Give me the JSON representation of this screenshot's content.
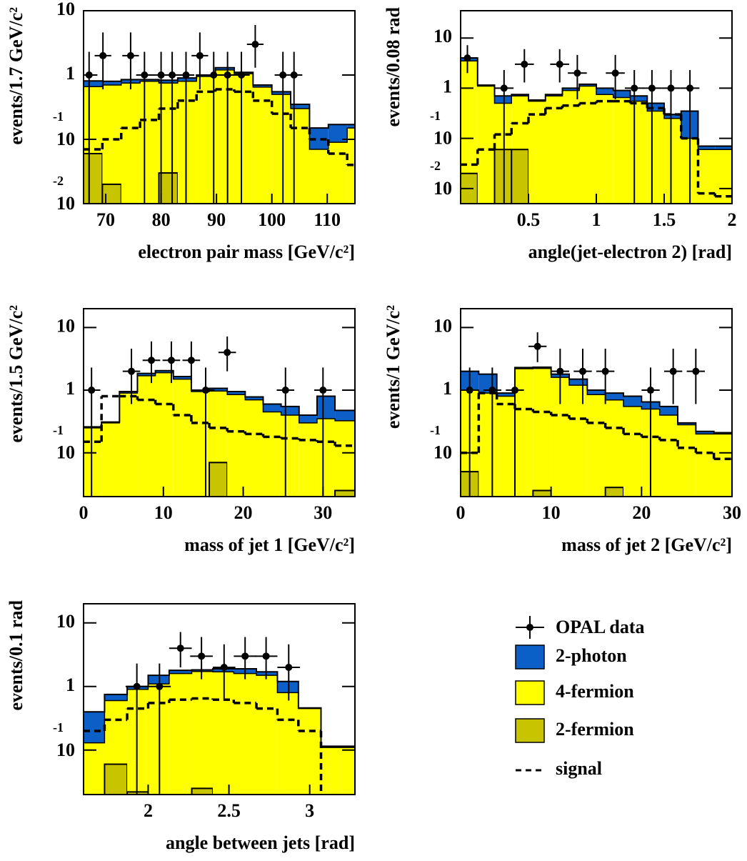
{
  "legend": {
    "data": {
      "name": "OPAL data",
      "color": "#000000"
    },
    "photon2": {
      "name": "2-photon",
      "color": "#0d5fc8"
    },
    "fermion4": {
      "name": "4-fermion",
      "color": "#ffff00"
    },
    "fermion2": {
      "name": "2-fermion",
      "color": "#c8c400"
    },
    "signal": {
      "name": "signal",
      "color": "#000000"
    }
  },
  "chart_data": [
    {
      "type": "histogram",
      "x_label": "electron pair mass [GeV/c²]",
      "y_label": "events/1.7 GeV/c²",
      "log_y": true,
      "xlim": [
        66,
        115
      ],
      "ylim": [
        0.01,
        10
      ],
      "xticks": [
        70,
        80,
        90,
        100,
        110
      ],
      "yticks": [
        {
          "value": 0.01,
          "label": "10",
          "exponent": "-2"
        },
        {
          "value": 0.1,
          "label": "10",
          "exponent": "-1"
        },
        1,
        10
      ],
      "bins": [
        66,
        69.4,
        72.8,
        76.2,
        79.6,
        83,
        86.4,
        89.8,
        93.2,
        96.6,
        100,
        103.4,
        106.8,
        110.2,
        113.6,
        115
      ],
      "fermion2": [
        0.06,
        0.02,
        0,
        0,
        0.03,
        0,
        0,
        0,
        0,
        0,
        0,
        0,
        0,
        0,
        0
      ],
      "fermion4": [
        0.6,
        0.68,
        0.75,
        0.8,
        0.72,
        0.8,
        0.95,
        1.2,
        1.05,
        0.65,
        0.5,
        0.3,
        0.07,
        0.09,
        0.15
      ],
      "photon2": [
        0.15,
        0.1,
        0.1,
        0.05,
        0.08,
        0.1,
        0.05,
        0.1,
        0.05,
        0.05,
        0.05,
        0.05,
        0.08,
        0.08,
        0.02
      ],
      "signal": [
        0.07,
        0.1,
        0.15,
        0.2,
        0.3,
        0.4,
        0.55,
        0.6,
        0.55,
        0.4,
        0.25,
        0.15,
        0.1,
        0.06,
        0.04
      ],
      "data": {
        "x": [
          67,
          69.5,
          74.5,
          77,
          80,
          82,
          84.5,
          87,
          89.5,
          92,
          94.5,
          97,
          102,
          104
        ],
        "y": [
          1,
          2,
          2,
          1,
          1,
          1,
          1,
          2,
          1,
          1,
          1,
          3,
          1,
          1
        ],
        "yerr_low": [
          1,
          1.4,
          1.4,
          1,
          1,
          1,
          1,
          1.4,
          1,
          1,
          1,
          1.7,
          1,
          1
        ],
        "yerr_high": [
          1.3,
          2.6,
          2.6,
          1.3,
          1.3,
          1.3,
          1.3,
          2.6,
          1.3,
          1.3,
          1.3,
          3,
          1.3,
          1.3
        ],
        "xerr": 1.5
      }
    },
    {
      "type": "histogram",
      "x_label": "angle(jet-electron 2) [rad]",
      "y_label": "events/0.08 rad",
      "log_y": true,
      "xlim": [
        0,
        2
      ],
      "ylim": [
        0.005,
        35
      ],
      "xticks": [
        0.5,
        1,
        1.5,
        2
      ],
      "yticks": [
        {
          "value": 0.01,
          "label": "10",
          "exponent": "-2"
        },
        {
          "value": 0.1,
          "label": "10",
          "exponent": "-1"
        },
        1,
        10
      ],
      "bins": [
        0,
        0.125,
        0.25,
        0.375,
        0.5,
        0.625,
        0.75,
        0.875,
        1,
        1.125,
        1.25,
        1.375,
        1.5,
        1.625,
        1.75,
        1.875,
        2
      ],
      "fermion2": [
        0.02,
        0,
        0.06,
        0.06,
        0,
        0,
        0,
        0,
        0,
        0,
        0,
        0,
        0,
        0,
        0,
        0
      ],
      "fermion4": [
        3.48,
        1.1,
        0.44,
        0.64,
        0.55,
        0.7,
        0.9,
        1.1,
        0.75,
        0.65,
        0.55,
        0.35,
        0.25,
        0.1,
        0.06,
        0.06
      ],
      "photon2": [
        0.5,
        0.05,
        0.2,
        0.05,
        0.03,
        0.05,
        0.1,
        0.1,
        0.25,
        0.25,
        0.15,
        0.15,
        0.05,
        0.25,
        0.01,
        0.01
      ],
      "signal": [
        0.03,
        0.06,
        0.12,
        0.2,
        0.3,
        0.4,
        0.45,
        0.5,
        0.55,
        0.55,
        0.5,
        0.4,
        0.3,
        0.1,
        0.008,
        0.007
      ],
      "data": {
        "x": [
          0.05,
          0.32,
          0.47,
          0.73,
          0.86,
          1.14,
          1.28,
          1.41,
          1.55,
          1.69
        ],
        "y": [
          4,
          1,
          3,
          3,
          2,
          2,
          1,
          1,
          1,
          1
        ],
        "yerr_low": [
          2,
          1,
          1.7,
          1.7,
          1.4,
          1.4,
          1,
          1,
          1,
          1
        ],
        "yerr_high": [
          3.2,
          1.3,
          3,
          3,
          2.6,
          2.6,
          1.3,
          1.3,
          1.3,
          1.3
        ],
        "xerr": 0.07
      }
    },
    {
      "type": "histogram",
      "x_label": "mass of jet 1 [GeV/c²]",
      "y_label": "events/1.5 GeV/c²",
      "log_y": true,
      "xlim": [
        0,
        34
      ],
      "ylim": [
        0.02,
        20
      ],
      "xticks": [
        0,
        10,
        20,
        30
      ],
      "yticks": [
        {
          "value": 0.1,
          "label": "10",
          "exponent": "-1"
        },
        1,
        10
      ],
      "bins": [
        0,
        2.25,
        4.5,
        6.75,
        9,
        11.25,
        13.5,
        15.75,
        18,
        20.25,
        22.5,
        24.75,
        27,
        29.25,
        31.5,
        34
      ],
      "fermion2": [
        0,
        0,
        0,
        0,
        0,
        0,
        0,
        0.07,
        0,
        0,
        0,
        0,
        0,
        0,
        0.025
      ],
      "fermion4": [
        0.25,
        0.3,
        0.9,
        1.7,
        1.9,
        1.5,
        0.95,
        0.9,
        0.85,
        0.7,
        0.45,
        0.4,
        0.3,
        0.35,
        0.3
      ],
      "photon2": [
        0.01,
        0.01,
        0.05,
        0.15,
        0.15,
        0.15,
        0.05,
        0.1,
        0.1,
        0.08,
        0.15,
        0.15,
        0.1,
        0.45,
        0.15
      ],
      "signal": [
        0.15,
        0.8,
        0.8,
        0.7,
        0.6,
        0.4,
        0.3,
        0.25,
        0.22,
        0.2,
        0.18,
        0.17,
        0.16,
        0.15,
        0.13
      ],
      "data": {
        "x": [
          1,
          6,
          8.5,
          11,
          13.5,
          15.3,
          18,
          25.3,
          30
        ],
        "y": [
          1,
          2,
          3,
          3,
          3,
          1,
          4,
          1,
          1
        ],
        "yerr_low": [
          1,
          1.4,
          1.7,
          1.7,
          1.7,
          1,
          2,
          1,
          1
        ],
        "yerr_high": [
          1.3,
          2.6,
          3,
          3,
          3,
          1.3,
          3.2,
          1.3,
          1.3
        ],
        "xerr": 1.1
      }
    },
    {
      "type": "histogram",
      "x_label": "mass of jet 2 [GeV/c²]",
      "y_label": "events/1 GeV/c²",
      "log_y": true,
      "xlim": [
        0,
        30
      ],
      "ylim": [
        0.02,
        20
      ],
      "xticks": [
        0,
        10,
        20,
        30
      ],
      "yticks": [
        {
          "value": 0.1,
          "label": "10",
          "exponent": "-1"
        },
        1,
        10
      ],
      "bins": [
        0,
        2,
        4,
        6,
        8,
        10,
        12,
        14,
        16,
        18,
        20,
        22,
        24,
        26,
        28,
        30
      ],
      "fermion2": [
        0.05,
        0,
        0,
        0,
        0.025,
        0,
        0,
        0,
        0.028,
        0,
        0,
        0,
        0,
        0,
        0
      ],
      "fermion4": [
        0.95,
        0.9,
        0.8,
        2.2,
        2.2,
        1.6,
        1.2,
        0.85,
        0.67,
        0.55,
        0.5,
        0.4,
        0.28,
        0.2,
        0.2
      ],
      "photon2": [
        1,
        0.9,
        0.1,
        0.1,
        0.1,
        0.2,
        0.3,
        0.15,
        0.2,
        0.25,
        0.15,
        0.15,
        0.02,
        0.02,
        0.01
      ],
      "signal": [
        0.1,
        0.9,
        0.6,
        0.5,
        0.45,
        0.4,
        0.35,
        0.3,
        0.25,
        0.2,
        0.18,
        0.16,
        0.12,
        0.1,
        0.08
      ],
      "data": {
        "x": [
          1,
          3.5,
          6,
          8.5,
          11,
          13.5,
          16,
          21,
          23.5,
          26
        ],
        "y": [
          1,
          1,
          1,
          5,
          2,
          2,
          2,
          1,
          2,
          2
        ],
        "yerr_low": [
          1,
          1,
          1,
          2.2,
          1.4,
          1.4,
          1.4,
          1,
          1.4,
          1.4
        ],
        "yerr_high": [
          1.3,
          1.3,
          1.3,
          3.4,
          2.6,
          2.6,
          2.6,
          1.3,
          2.6,
          2.6
        ],
        "xerr": 1
      }
    },
    {
      "type": "histogram",
      "x_label": "angle between jets [rad]",
      "y_label": "events/0.1 rad",
      "log_y": true,
      "xlim": [
        1.6,
        3.28
      ],
      "ylim": [
        0.02,
        20
      ],
      "xticks": [
        2,
        2.5,
        3
      ],
      "yticks": [
        {
          "value": 0.1,
          "label": "10",
          "exponent": "-1"
        },
        1,
        10
      ],
      "bins": [
        1.6,
        1.73,
        1.87,
        2,
        2.13,
        2.27,
        2.4,
        2.53,
        2.67,
        2.8,
        2.93,
        3.07,
        3.2,
        3.28
      ],
      "fermion2": [
        0,
        0.06,
        0.022,
        0,
        0,
        0.025,
        0,
        0,
        0,
        0,
        0,
        0,
        0
      ],
      "fermion4": [
        0.13,
        0.54,
        0.88,
        1.1,
        1.6,
        1.7,
        1.7,
        1.6,
        1.5,
        0.8,
        0.45,
        0.11,
        0.11
      ],
      "photon2": [
        0.27,
        0.15,
        0.1,
        0.4,
        0.2,
        0.1,
        0.2,
        0.3,
        0.2,
        0.4,
        0.01,
        0.005,
        0.005
      ],
      "signal": [
        0.2,
        0.3,
        0.45,
        0.55,
        0.62,
        0.65,
        0.62,
        0.55,
        0.45,
        0.3,
        0.2,
        0.01,
        0.01
      ],
      "data": {
        "x": [
          1.93,
          2.07,
          2.2,
          2.33,
          2.47,
          2.6,
          2.73,
          2.87
        ],
        "y": [
          1,
          1,
          4,
          3,
          2,
          3,
          3,
          2
        ],
        "yerr_low": [
          1,
          1,
          2,
          1.7,
          1.4,
          1.7,
          1.7,
          1.4
        ],
        "yerr_high": [
          1.3,
          1.3,
          3.2,
          3,
          2.6,
          3,
          3,
          2.6
        ],
        "xerr": 0.07
      }
    }
  ]
}
